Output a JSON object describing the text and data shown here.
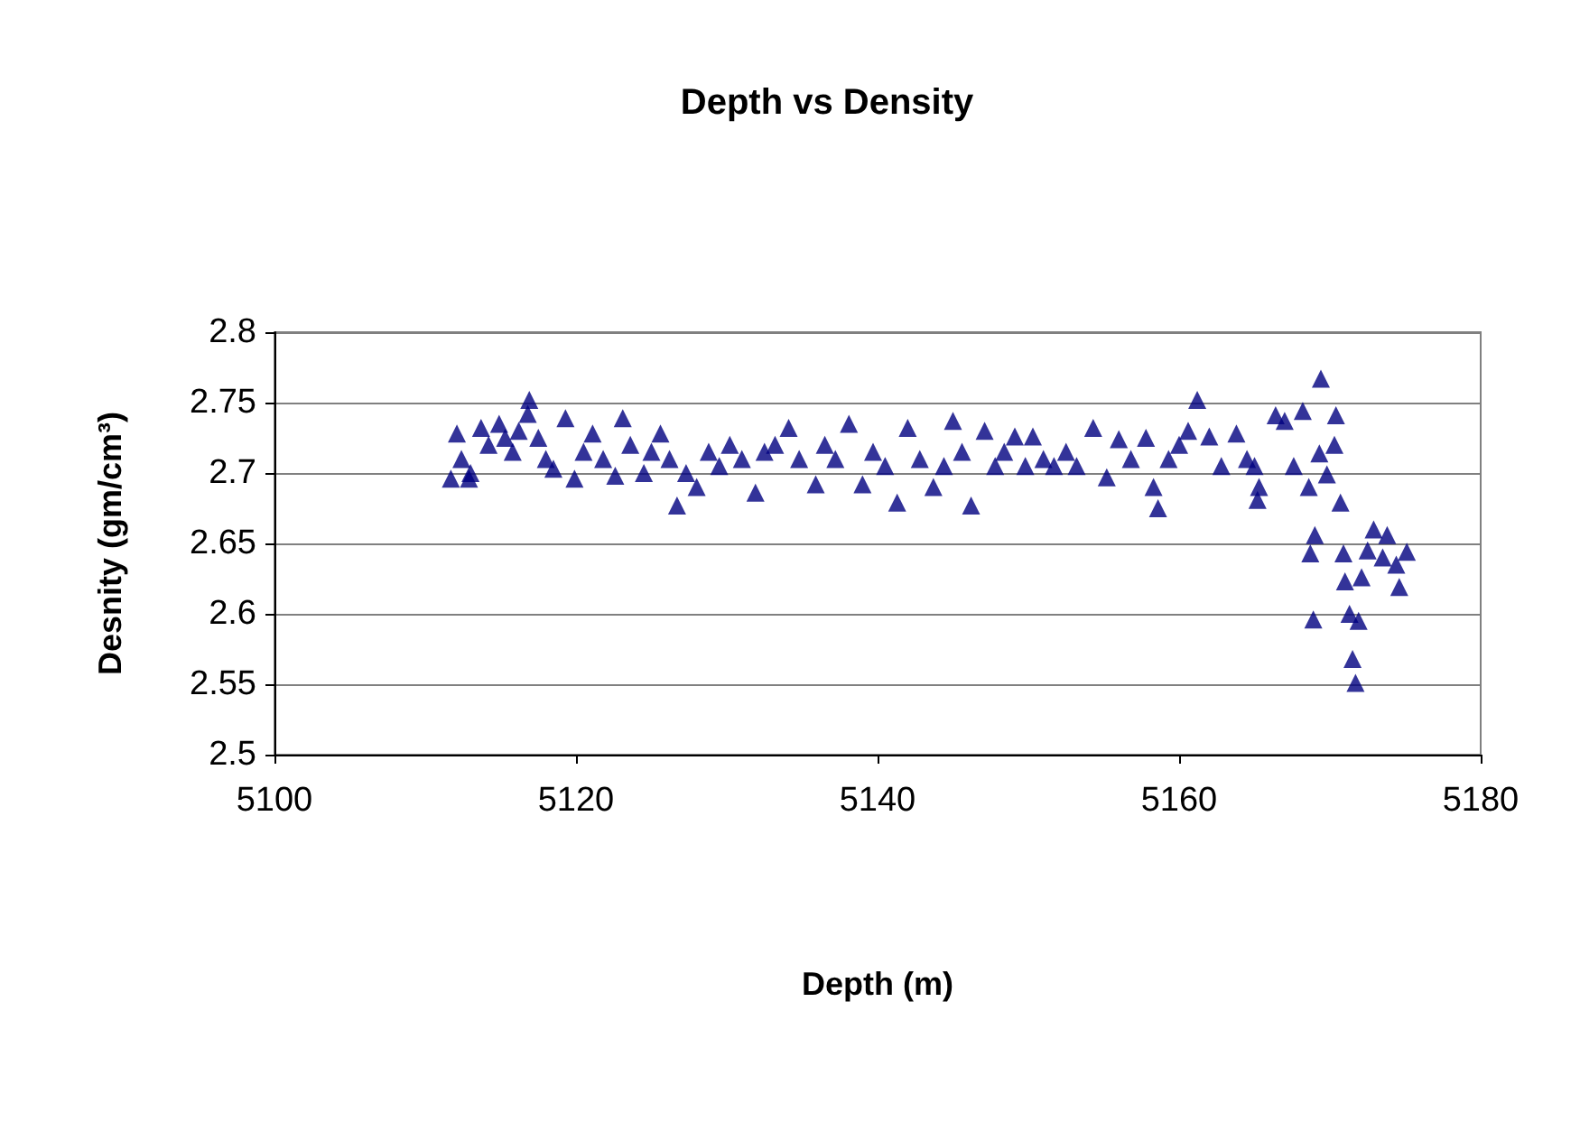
{
  "chart_data": {
    "type": "scatter",
    "title": "Depth vs Density",
    "xlabel": "Depth (m)",
    "ylabel": "Desnity (gm/cm³)",
    "marker": "triangle",
    "grid": "y",
    "legend": false,
    "xlim": [
      5100,
      5180
    ],
    "xticks": [
      5100,
      5120,
      5140,
      5160,
      5180
    ],
    "ylim": [
      2.5,
      2.8
    ],
    "yticks": [
      2.5,
      2.55,
      2.6,
      2.65,
      2.7,
      2.75,
      2.8
    ],
    "series": [
      {
        "color": "#000080",
        "x": [
          5111.7,
          5112.1,
          5112.4,
          5112.9,
          5113.0,
          5113.7,
          5114.2,
          5114.9,
          5115.3,
          5115.8,
          5116.2,
          5116.8,
          5116.9,
          5117.5,
          5118.0,
          5118.5,
          5119.3,
          5119.9,
          5120.5,
          5121.1,
          5121.8,
          5122.6,
          5123.1,
          5123.6,
          5124.5,
          5125.0,
          5125.6,
          5126.2,
          5126.7,
          5127.3,
          5128.0,
          5128.8,
          5129.5,
          5130.2,
          5131.0,
          5131.9,
          5132.5,
          5133.2,
          5134.1,
          5134.8,
          5135.9,
          5136.5,
          5137.2,
          5138.1,
          5139.0,
          5139.7,
          5140.5,
          5141.3,
          5142.0,
          5142.8,
          5143.7,
          5144.4,
          5145.0,
          5145.6,
          5146.2,
          5147.1,
          5147.8,
          5148.4,
          5149.1,
          5149.8,
          5150.3,
          5151.0,
          5151.7,
          5152.5,
          5153.2,
          5154.3,
          5155.2,
          5156.0,
          5156.8,
          5157.8,
          5158.3,
          5158.6,
          5159.3,
          5160.0,
          5160.6,
          5161.2,
          5162.0,
          5162.8,
          5163.8,
          5164.5,
          5165.0,
          5165.2,
          5165.3,
          5166.4,
          5167.0,
          5167.6,
          5168.2,
          5168.6,
          5168.7,
          5168.9,
          5169.0,
          5169.3,
          5169.4,
          5169.8,
          5170.3,
          5170.4,
          5170.7,
          5170.9,
          5171.0,
          5171.3,
          5171.5,
          5171.7,
          5171.9,
          5172.1,
          5172.5,
          5172.9,
          5173.5,
          5173.8,
          5174.4,
          5174.6,
          5175.1
        ],
        "values": [
          2.696,
          2.728,
          2.71,
          2.696,
          2.7,
          2.732,
          2.72,
          2.735,
          2.725,
          2.715,
          2.73,
          2.742,
          2.752,
          2.725,
          2.71,
          2.703,
          2.739,
          2.696,
          2.715,
          2.728,
          2.71,
          2.698,
          2.739,
          2.72,
          2.7,
          2.715,
          2.728,
          2.71,
          2.677,
          2.7,
          2.69,
          2.715,
          2.705,
          2.72,
          2.71,
          2.686,
          2.715,
          2.72,
          2.732,
          2.71,
          2.692,
          2.72,
          2.71,
          2.735,
          2.692,
          2.715,
          2.705,
          2.679,
          2.732,
          2.71,
          2.69,
          2.705,
          2.737,
          2.715,
          2.677,
          2.73,
          2.705,
          2.715,
          2.726,
          2.705,
          2.726,
          2.71,
          2.705,
          2.715,
          2.705,
          2.732,
          2.697,
          2.724,
          2.71,
          2.725,
          2.69,
          2.675,
          2.71,
          2.72,
          2.73,
          2.752,
          2.726,
          2.705,
          2.728,
          2.71,
          2.705,
          2.681,
          2.69,
          2.741,
          2.737,
          2.705,
          2.744,
          2.69,
          2.643,
          2.596,
          2.656,
          2.714,
          2.767,
          2.699,
          2.72,
          2.741,
          2.679,
          2.643,
          2.623,
          2.6,
          2.568,
          2.551,
          2.595,
          2.626,
          2.645,
          2.66,
          2.64,
          2.656,
          2.635,
          2.619,
          2.644
        ]
      }
    ]
  }
}
